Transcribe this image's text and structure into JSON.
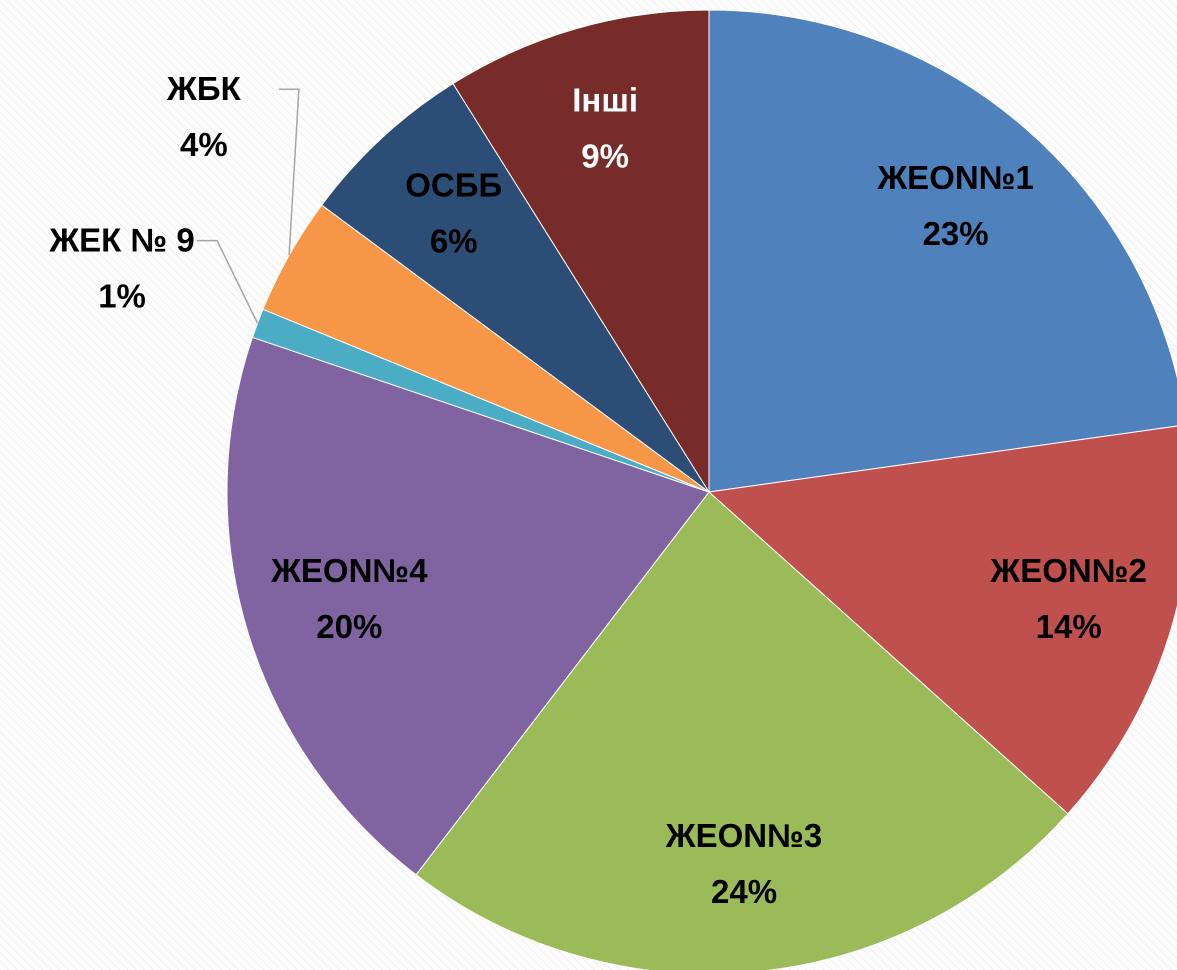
{
  "chart_data": {
    "type": "pie",
    "categories": [
      "ЖЕON№1",
      "ЖЕON№2",
      "ЖЕON№3",
      "ЖЕON№4",
      "ЖЕК № 9",
      "ЖБК",
      "ОСББ",
      "Інші"
    ],
    "values": [
      23,
      14,
      24,
      20,
      1,
      4,
      6,
      9
    ],
    "value_labels": [
      "23%",
      "14%",
      "24%",
      "20%",
      "1%",
      "4%",
      "6%",
      "9%"
    ],
    "colors": [
      "#4f81bd",
      "#c0504d",
      "#9bbb59",
      "#8064a2",
      "#4bacc6",
      "#f79646",
      "#2c4d75",
      "#772c2a"
    ],
    "label_colors": [
      "#000000",
      "#000000",
      "#000000",
      "#000000",
      "#000000",
      "#000000",
      "#000000",
      "#ffffff"
    ]
  }
}
